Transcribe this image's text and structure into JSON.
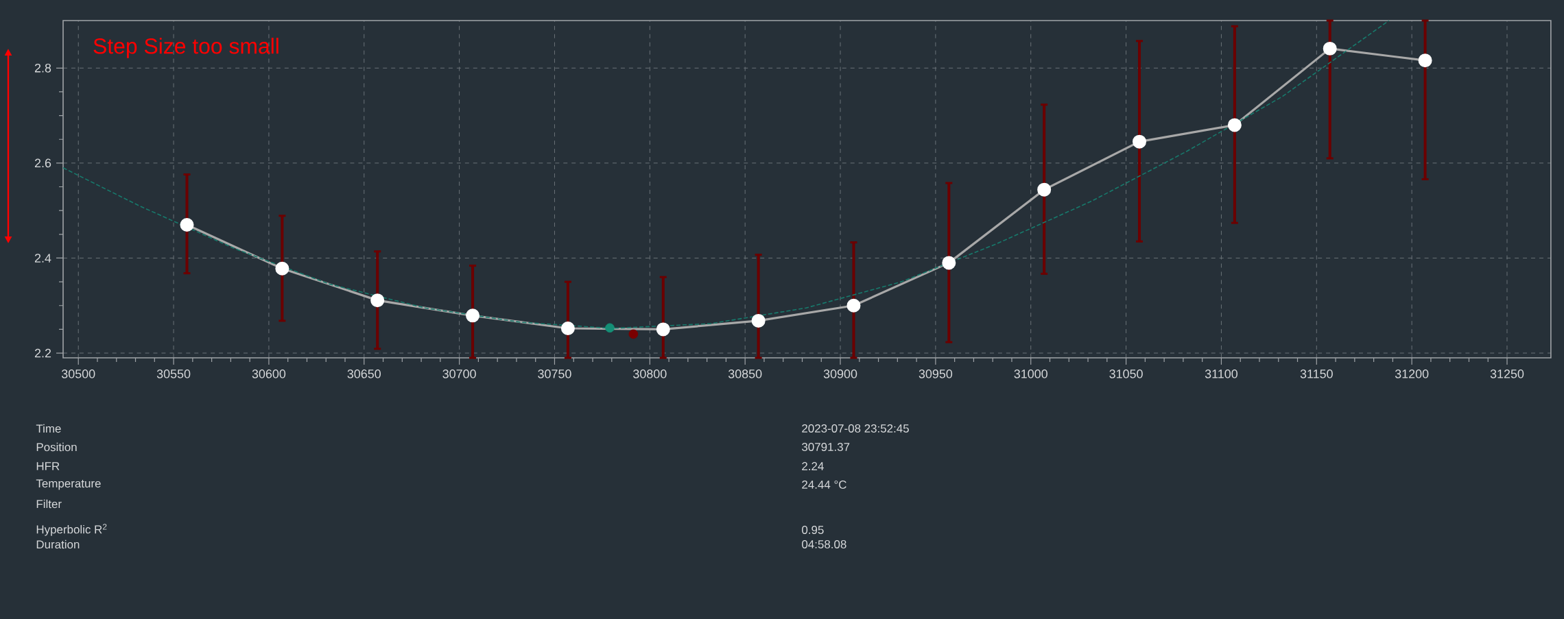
{
  "chart_data": {
    "type": "line",
    "xlim": [
      30492,
      31273
    ],
    "ylim": [
      2.19,
      2.9
    ],
    "xticks": [
      30500,
      30550,
      30600,
      30650,
      30700,
      30750,
      30800,
      30850,
      30900,
      30950,
      31000,
      31050,
      31100,
      31150,
      31200,
      31250
    ],
    "yticks": [
      2.2,
      2.4,
      2.6,
      2.8
    ],
    "grid": true,
    "series": [
      {
        "color": "#a8a8a8",
        "marker": "circle",
        "x": [
          30557,
          30607,
          30657,
          30707,
          30757,
          30807,
          30857,
          30907,
          30957,
          31007,
          31057,
          31107,
          31157,
          31207
        ],
        "values": [
          2.47,
          2.378,
          2.311,
          2.279,
          2.252,
          2.25,
          2.268,
          2.3,
          2.39,
          2.544,
          2.645,
          2.68,
          2.841,
          2.816
        ],
        "errors": [
          [
            2.368,
            2.576
          ],
          [
            2.268,
            2.489
          ],
          [
            2.209,
            2.414
          ],
          [
            2.19,
            2.384
          ],
          [
            2.19,
            2.35
          ],
          [
            2.19,
            2.36
          ],
          [
            2.19,
            2.407
          ],
          [
            2.19,
            2.433
          ],
          [
            2.223,
            2.558
          ],
          [
            2.367,
            2.723
          ],
          [
            2.435,
            2.857
          ],
          [
            2.474,
            2.888
          ],
          [
            2.61,
            2.9
          ],
          [
            2.566,
            2.9
          ]
        ]
      },
      {
        "color": "#177a6c",
        "marker": "none",
        "line_style": "dashed",
        "x": [
          30492,
          30532,
          30582,
          30632,
          30682,
          30732,
          30780,
          30832,
          30882,
          30932,
          30982,
          31032,
          31082,
          31132,
          31188
        ],
        "values": [
          2.59,
          2.51,
          2.42,
          2.345,
          2.295,
          2.265,
          2.252,
          2.262,
          2.295,
          2.35,
          2.43,
          2.52,
          2.625,
          2.74,
          2.9
        ]
      },
      {
        "type": "scatter",
        "color": "#148f76",
        "marker": "circle",
        "x": [
          30779
        ],
        "values": [
          2.253
        ]
      },
      {
        "type": "scatter",
        "color": "#7a0000",
        "marker": "circle",
        "x": [
          30791.37
        ],
        "values": [
          2.24
        ]
      }
    ],
    "annotations": [
      "Step Size too small",
      "Time",
      "Position",
      "HFR",
      "Temperature",
      "Filter",
      "Hyperbolic R$^{2}$",
      "Duration",
      "2023-07-08 23:52:45",
      "30791.37",
      "2.24",
      "24.44 °C",
      "0.95",
      "04:58.08"
    ]
  }
}
